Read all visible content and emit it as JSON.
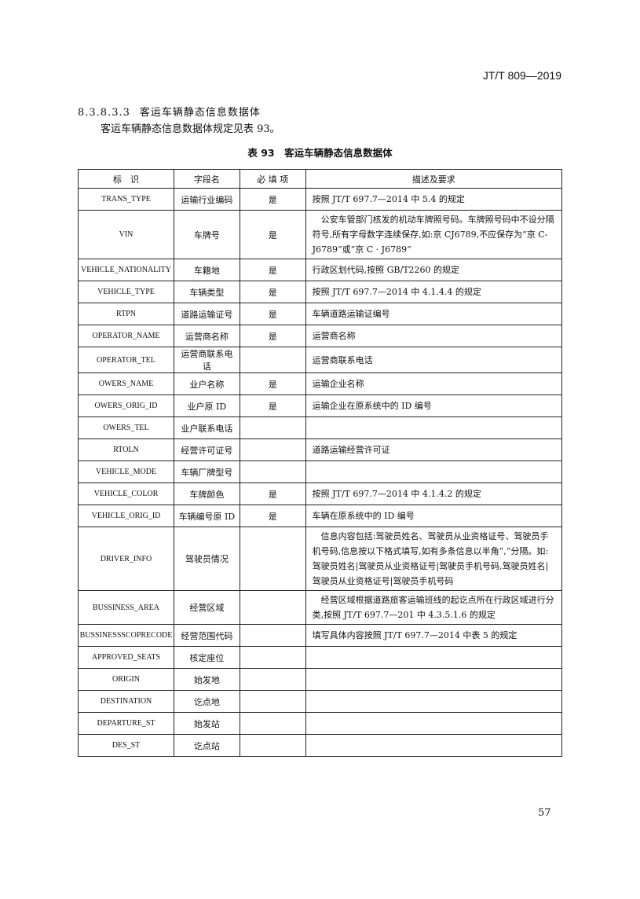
{
  "header": {
    "standard": "JT/T 809—2019"
  },
  "section": {
    "number": "8.3.8.3.3",
    "title": "客运车辆静态信息数据体",
    "intro": "客运车辆静态信息数据体规定见表 93。"
  },
  "table": {
    "caption": "表 93　客运车辆静态信息数据体",
    "headers": [
      "标　识",
      "字段名",
      "必 填 项",
      "描述及要求"
    ],
    "rows": [
      [
        "TRANS_TYPE",
        "运输行业编码",
        "是",
        "按照 JT/T 697.7—2014 中 5.4 的规定"
      ],
      [
        "VIN",
        "车牌号",
        "是",
        "　公安车管部门核发的机动车牌照号码。车牌照号码中不设分隔符号,所有字母数字连续保存,如:京 CJ6789,不应保存为“京 C-J6789”或“京 C · J6789”"
      ],
      [
        "VEHICLE_NATIONALITY",
        "车籍地",
        "是",
        "行政区划代码,按照 GB/T2260 的规定"
      ],
      [
        "VEHICLE_TYPE",
        "车辆类型",
        "是",
        "按照 JT/T 697.7—2014 中 4.1.4.4 的规定"
      ],
      [
        "RTPN",
        "道路运输证号",
        "是",
        "车辆道路运输证编号"
      ],
      [
        "OPERATOR_NAME",
        "运营商名称",
        "是",
        "运营商名称"
      ],
      [
        "OPERATOR_TEL",
        "运营商联系电话",
        "",
        "运营商联系电话"
      ],
      [
        "OWERS_NAME",
        "业户名称",
        "是",
        "运输企业名称"
      ],
      [
        "OWERS_ORIG_ID",
        "业户原 ID",
        "是",
        "运输企业在原系统中的 ID 编号"
      ],
      [
        "OWERS_TEL",
        "业户联系电话",
        "",
        ""
      ],
      [
        "RTOLN",
        "经营许可证号",
        "",
        "道路运输经营许可证"
      ],
      [
        "VEHICLE_MODE",
        "车辆厂牌型号",
        "",
        ""
      ],
      [
        "VEHICLE_COLOR",
        "车牌颜色",
        "是",
        "按照 JT/T 697.7—2014 中 4.1.4.2 的规定"
      ],
      [
        "VEHICLE_ORIG_ID",
        "车辆编号原 ID",
        "是",
        "车辆在原系统中的 ID 编号"
      ],
      [
        "DRIVER_INFO",
        "驾驶员情况",
        "",
        "　信息内容包括:驾驶员姓名、驾驶员从业资格证号、驾驶员手机号码,信息按以下格式填写,如有多条信息以半角“,”分隔。如:驾驶员姓名|驾驶员从业资格证号|驾驶员手机号码,驾驶员姓名|驾驶员从业资格证号|驾驶员手机号码"
      ],
      [
        "BUSSINESS_AREA",
        "经营区域",
        "",
        "　经营区域根据道路旅客运输班线的起讫点所在行政区域进行分类,按照 JT/T 697.7—201 中 4.3.5.1.6 的规定"
      ],
      [
        "BUSSINESSSCOPRECODE",
        "经营范围代码",
        "",
        "填写具体内容按照 JT/T 697.7—2014 中表 5 的规定"
      ],
      [
        "APPROVED_SEATS",
        "核定座位",
        "",
        ""
      ],
      [
        "ORIGIN",
        "始发地",
        "",
        ""
      ],
      [
        "DESTINATION",
        "讫点地",
        "",
        ""
      ],
      [
        "DEPARTURE_ST",
        "始发站",
        "",
        ""
      ],
      [
        "DES_ST",
        "讫点站",
        "",
        ""
      ]
    ]
  },
  "footer": {
    "page_number": "57"
  }
}
